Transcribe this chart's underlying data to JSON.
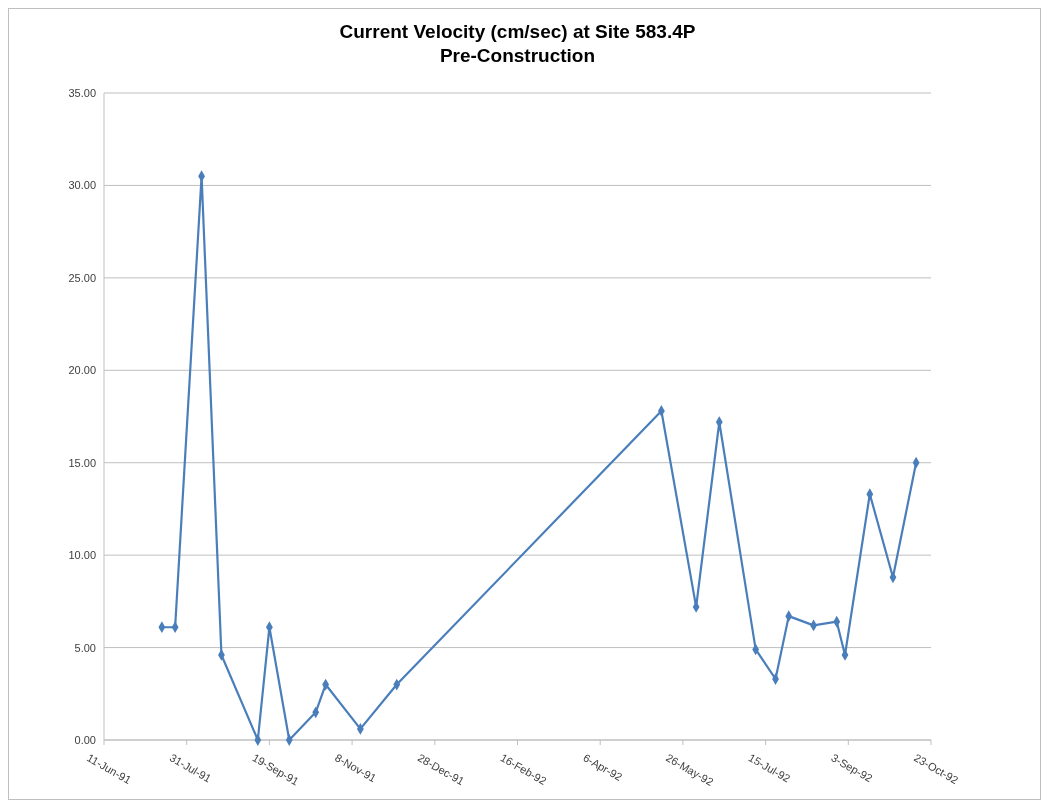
{
  "chart_data": {
    "type": "line",
    "title": "Current Velocity (cm/sec) at Site 583.4P\nPre-Construction",
    "x": [
      "1991-07-16",
      "1991-07-24",
      "1991-08-09",
      "1991-08-21",
      "1991-09-12",
      "1991-09-19",
      "1991-10-01",
      "1991-10-17",
      "1991-10-23",
      "1991-11-13",
      "1991-12-05",
      "1992-05-13",
      "1992-06-03",
      "1992-06-17",
      "1992-07-09",
      "1992-07-21",
      "1992-07-29",
      "1992-08-13",
      "1992-08-27",
      "1992-09-01",
      "1992-09-16",
      "1992-09-30",
      "1992-10-14"
    ],
    "series": [
      {
        "color": "#4a7ebb",
        "values": [
          6.1,
          6.1,
          30.5,
          4.6,
          0.0,
          6.1,
          0.0,
          1.5,
          3.0,
          0.6,
          3.0,
          17.8,
          7.2,
          17.2,
          4.9,
          3.3,
          6.7,
          6.2,
          6.4,
          4.6,
          13.3,
          8.8,
          15.0
        ]
      }
    ],
    "xlim": [
      "1991-06-11",
      "1992-10-23"
    ],
    "xticks": [
      {
        "value": "1991-06-11",
        "label": "11-Jun-91"
      },
      {
        "value": "1991-07-31",
        "label": "31-Jul-91"
      },
      {
        "value": "1991-09-19",
        "label": "19-Sep-91"
      },
      {
        "value": "1991-11-08",
        "label": "8-Nov-91"
      },
      {
        "value": "1991-12-28",
        "label": "28-Dec-91"
      },
      {
        "value": "1992-02-16",
        "label": "16-Feb-92"
      },
      {
        "value": "1992-04-06",
        "label": "6-Apr-92"
      },
      {
        "value": "1992-05-26",
        "label": "26-May-92"
      },
      {
        "value": "1992-07-15",
        "label": "15-Jul-92"
      },
      {
        "value": "1992-09-03",
        "label": "3-Sep-92"
      },
      {
        "value": "1992-10-23",
        "label": "23-Oct-92"
      }
    ],
    "ylim": [
      0,
      35
    ],
    "yticks": [
      {
        "value": 0,
        "label": "0.00"
      },
      {
        "value": 5,
        "label": "5.00"
      },
      {
        "value": 10,
        "label": "10.00"
      },
      {
        "value": 15,
        "label": "15.00"
      },
      {
        "value": 20,
        "label": "20.00"
      },
      {
        "value": 25,
        "label": "25.00"
      },
      {
        "value": 30,
        "label": "30.00"
      },
      {
        "value": 35,
        "label": "35.00"
      }
    ],
    "grid": "y",
    "marker": "diamond",
    "line_style": "solid"
  }
}
